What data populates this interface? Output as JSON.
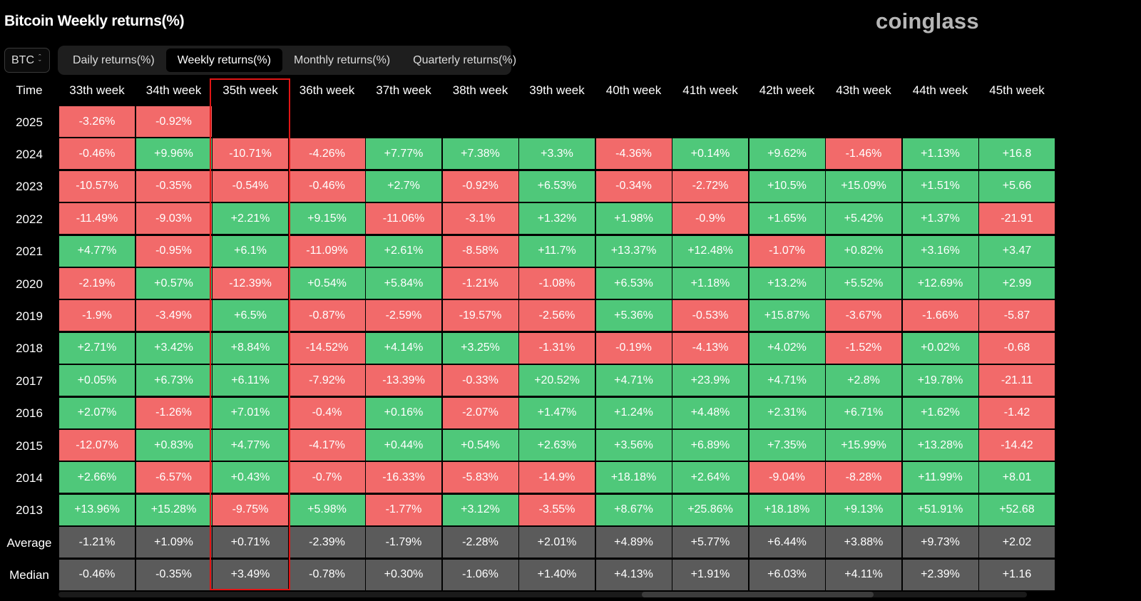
{
  "page": {
    "title": "Bitcoin Weekly returns(%)",
    "brand": "coinglass"
  },
  "asset_select": {
    "value": "BTC",
    "icon": "up-down-chevron-icon"
  },
  "tabs": [
    {
      "label": "Daily returns(%)",
      "active": false
    },
    {
      "label": "Weekly returns(%)",
      "active": true
    },
    {
      "label": "Monthly returns(%)",
      "active": false
    },
    {
      "label": "Quarterly returns(%)",
      "active": false
    }
  ],
  "table": {
    "corner_label": "Time",
    "highlighted_column": "35th week",
    "columns": [
      "33th week",
      "34th week",
      "35th week",
      "36th week",
      "37th week",
      "38th week",
      "39th week",
      "40th week",
      "41th week",
      "42th week",
      "43th week",
      "44th week",
      "45th week"
    ],
    "rows": [
      {
        "label": "2025",
        "type": "year",
        "values": [
          "-3.26%",
          "-0.92%",
          "",
          "",
          "",
          "",
          "",
          "",
          "",
          "",
          "",
          "",
          ""
        ]
      },
      {
        "label": "2024",
        "type": "year",
        "values": [
          "-0.46%",
          "+9.96%",
          "-10.71%",
          "-4.26%",
          "+7.77%",
          "+7.38%",
          "+3.3%",
          "-4.36%",
          "+0.14%",
          "+9.62%",
          "-1.46%",
          "+1.13%",
          "+16.8"
        ]
      },
      {
        "label": "2023",
        "type": "year",
        "values": [
          "-10.57%",
          "-0.35%",
          "-0.54%",
          "-0.46%",
          "+2.7%",
          "-0.92%",
          "+6.53%",
          "-0.34%",
          "-2.72%",
          "+10.5%",
          "+15.09%",
          "+1.51%",
          "+5.66"
        ]
      },
      {
        "label": "2022",
        "type": "year",
        "values": [
          "-11.49%",
          "-9.03%",
          "+2.21%",
          "+9.15%",
          "-11.06%",
          "-3.1%",
          "+1.32%",
          "+1.98%",
          "-0.9%",
          "+1.65%",
          "+5.42%",
          "+1.37%",
          "-21.91"
        ]
      },
      {
        "label": "2021",
        "type": "year",
        "values": [
          "+4.77%",
          "-0.95%",
          "+6.1%",
          "-11.09%",
          "+2.61%",
          "-8.58%",
          "+11.7%",
          "+13.37%",
          "+12.48%",
          "-1.07%",
          "+0.82%",
          "+3.16%",
          "+3.47"
        ]
      },
      {
        "label": "2020",
        "type": "year",
        "values": [
          "-2.19%",
          "+0.57%",
          "-12.39%",
          "+0.54%",
          "+5.84%",
          "-1.21%",
          "-1.08%",
          "+6.53%",
          "+1.18%",
          "+13.2%",
          "+5.52%",
          "+12.69%",
          "+2.99"
        ]
      },
      {
        "label": "2019",
        "type": "year",
        "values": [
          "-1.9%",
          "-3.49%",
          "+6.5%",
          "-0.87%",
          "-2.59%",
          "-19.57%",
          "-2.56%",
          "+5.36%",
          "-0.53%",
          "+15.87%",
          "-3.67%",
          "-1.66%",
          "-5.87"
        ]
      },
      {
        "label": "2018",
        "type": "year",
        "values": [
          "+2.71%",
          "+3.42%",
          "+8.84%",
          "-14.52%",
          "+4.14%",
          "+3.25%",
          "-1.31%",
          "-0.19%",
          "-4.13%",
          "+4.02%",
          "-1.52%",
          "+0.02%",
          "-0.68"
        ]
      },
      {
        "label": "2017",
        "type": "year",
        "values": [
          "+0.05%",
          "+6.73%",
          "+6.11%",
          "-7.92%",
          "-13.39%",
          "-0.33%",
          "+20.52%",
          "+4.71%",
          "+23.9%",
          "+4.71%",
          "+2.8%",
          "+19.78%",
          "-21.11"
        ]
      },
      {
        "label": "2016",
        "type": "year",
        "values": [
          "+2.07%",
          "-1.26%",
          "+7.01%",
          "-0.4%",
          "+0.16%",
          "-2.07%",
          "+1.47%",
          "+1.24%",
          "+4.48%",
          "+2.31%",
          "+6.71%",
          "+1.62%",
          "-1.42"
        ]
      },
      {
        "label": "2015",
        "type": "year",
        "values": [
          "-12.07%",
          "+0.83%",
          "+4.77%",
          "-4.17%",
          "+0.44%",
          "+0.54%",
          "+2.63%",
          "+3.56%",
          "+6.89%",
          "+7.35%",
          "+15.99%",
          "+13.28%",
          "-14.42"
        ]
      },
      {
        "label": "2014",
        "type": "year",
        "values": [
          "+2.66%",
          "-6.57%",
          "+0.43%",
          "-0.7%",
          "-16.33%",
          "-5.83%",
          "-14.9%",
          "+18.18%",
          "+2.64%",
          "-9.04%",
          "-8.28%",
          "+11.99%",
          "+8.01"
        ]
      },
      {
        "label": "2013",
        "type": "year",
        "values": [
          "+13.96%",
          "+15.28%",
          "-9.75%",
          "+5.98%",
          "-1.77%",
          "+3.12%",
          "-3.55%",
          "+8.67%",
          "+25.86%",
          "+18.18%",
          "+9.13%",
          "+51.91%",
          "+52.68"
        ]
      },
      {
        "label": "Average",
        "type": "summary",
        "values": [
          "-1.21%",
          "+1.09%",
          "+0.71%",
          "-2.39%",
          "-1.79%",
          "-2.28%",
          "+2.01%",
          "+4.89%",
          "+5.77%",
          "+6.44%",
          "+3.88%",
          "+9.73%",
          "+2.02"
        ]
      },
      {
        "label": "Median",
        "type": "summary",
        "values": [
          "-0.46%",
          "-0.35%",
          "+3.49%",
          "-0.78%",
          "+0.30%",
          "-1.06%",
          "+1.40%",
          "+4.13%",
          "+1.91%",
          "+6.03%",
          "+4.11%",
          "+2.39%",
          "+1.16"
        ]
      }
    ]
  },
  "colors": {
    "positive": "#4fc87a",
    "negative": "#f26a6a",
    "summary": "#5b5b5b",
    "highlight_border": "#e01515",
    "background": "#000000"
  }
}
